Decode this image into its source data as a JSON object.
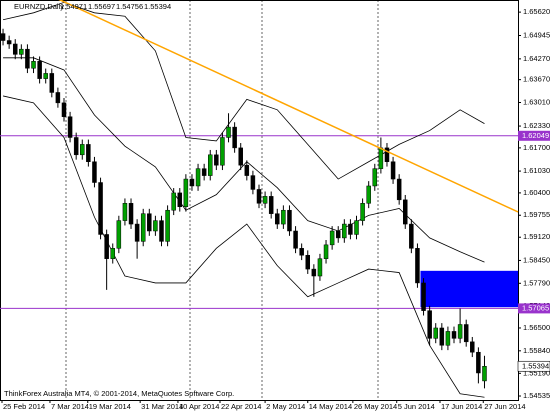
{
  "chart_data": {
    "type": "candlestick",
    "symbol": "EURNZD,Daily",
    "footer": "ThinkForex Australia MT4, © 2001-2014, MetaQuotes Software Corp.",
    "xlim": [
      -0.5,
      84.5
    ],
    "ylim": [
      1.5442,
      1.6597
    ],
    "xticks": [
      {
        "value": -0.17,
        "label": "25 Feb 2014"
      },
      {
        "value": 7.7,
        "label": "7 Mar 2014"
      },
      {
        "value": 13.9,
        "label": "19 Mar 2014"
      },
      {
        "value": 22.5,
        "label": "31 Mar 2014"
      },
      {
        "value": 28.7,
        "label": "10 Apr 2014"
      },
      {
        "value": 35.6,
        "label": "22 Apr 2014"
      },
      {
        "value": 43.0,
        "label": "2 May 2014"
      },
      {
        "value": 50.0,
        "label": "14 May 2014"
      },
      {
        "value": 57.4,
        "label": "26 May 2014"
      },
      {
        "value": 64.6,
        "label": "5 Jun 2014"
      },
      {
        "value": 71.7,
        "label": "17 Jun 2014"
      },
      {
        "value": 78.8,
        "label": "27 Jun 2014"
      }
    ],
    "yticks": [
      {
        "value": 1.6562,
        "label": "1.65620"
      },
      1.64945,
      {
        "value": 1.6427,
        "label": "1.64270"
      },
      {
        "value": 1.6367,
        "label": "1.63670"
      },
      {
        "value": 1.6301,
        "label": "1.63010"
      },
      {
        "value": 1.6233,
        "label": "1.62330"
      },
      {
        "value": 1.617,
        "label": "1.61700"
      },
      {
        "value": 1.6103,
        "label": "1.61030"
      },
      {
        "value": 1.604,
        "label": "1.60400"
      },
      1.59755,
      {
        "value": 1.5912,
        "label": "1.59120"
      },
      {
        "value": 1.5845,
        "label": "1.58450"
      },
      {
        "value": 1.5779,
        "label": "1.57790"
      },
      {
        "value": 1.5714,
        "label": "1.57140"
      },
      {
        "value": 1.565,
        "label": "1.56500"
      },
      {
        "value": 1.5584,
        "label": "1.55840"
      },
      {
        "value": 1.5519,
        "label": "1.55190"
      },
      1.54535
    ],
    "up_color": "#00a000",
    "down_color": "#000000",
    "open": [
      1.65,
      1.648,
      1.647,
      1.644,
      1.6455,
      1.64,
      1.642,
      1.637,
      1.6385,
      1.633,
      1.63,
      1.626,
      1.62,
      1.615,
      1.618,
      1.613,
      1.607,
      1.592,
      1.585,
      1.588,
      1.596,
      1.601,
      1.595,
      1.59,
      1.598,
      1.593,
      1.596,
      1.59,
      1.599,
      1.604,
      1.6,
      1.608,
      1.606,
      1.611,
      1.609,
      1.615,
      1.612,
      1.62,
      1.623,
      1.617,
      1.612,
      1.609,
      1.605,
      1.601,
      1.603,
      1.598,
      1.595,
      1.599,
      1.593,
      1.588,
      1.586,
      1.582,
      1.58,
      1.585,
      1.589,
      1.593,
      1.591,
      1.595,
      1.592,
      1.596,
      1.601,
      1.606,
      1.611,
      1.617,
      1.613,
      1.608,
      1.602,
      1.595,
      1.588,
      1.578,
      1.57,
      1.562,
      1.565,
      1.56,
      1.564,
      1.562,
      1.566,
      1.561,
      1.558,
      1.54971
    ],
    "high": [
      1.6514,
      1.6494,
      1.6484,
      1.6469,
      1.6469,
      1.6434,
      1.6434,
      1.6399,
      1.6399,
      1.6344,
      1.6314,
      1.6274,
      1.6214,
      1.6194,
      1.6194,
      1.6144,
      1.6084,
      1.5934,
      1.5894,
      1.5974,
      1.6024,
      1.6024,
      1.5964,
      1.5994,
      1.5994,
      1.5974,
      1.5974,
      1.6004,
      1.6054,
      1.6054,
      1.6094,
      1.6094,
      1.6124,
      1.6124,
      1.6164,
      1.6164,
      1.6214,
      1.627,
      1.6244,
      1.6184,
      1.6134,
      1.6104,
      1.6064,
      1.6044,
      1.6044,
      1.5994,
      1.6004,
      1.6004,
      1.5944,
      1.5894,
      1.5874,
      1.5834,
      1.5864,
      1.5904,
      1.5944,
      1.5944,
      1.5964,
      1.5964,
      1.5974,
      1.6024,
      1.6074,
      1.6124,
      1.62,
      1.6184,
      1.6144,
      1.6094,
      1.6034,
      1.5964,
      1.5894,
      1.5794,
      1.5714,
      1.5664,
      1.5664,
      1.5654,
      1.5654,
      1.5706,
      1.5674,
      1.5624,
      1.5594,
      1.55697
    ],
    "low": [
      1.6466,
      1.6456,
      1.6426,
      1.6426,
      1.6386,
      1.6386,
      1.6356,
      1.6356,
      1.6316,
      1.6286,
      1.6246,
      1.6186,
      1.6136,
      1.6136,
      1.6116,
      1.6056,
      1.5906,
      1.576,
      1.5836,
      1.5866,
      1.5946,
      1.5936,
      1.585,
      1.5886,
      1.5916,
      1.5916,
      1.5886,
      1.5886,
      1.5976,
      1.5986,
      1.5986,
      1.6046,
      1.6046,
      1.6076,
      1.6076,
      1.6106,
      1.6106,
      1.6186,
      1.6156,
      1.6106,
      1.6076,
      1.6036,
      1.5996,
      1.5996,
      1.5966,
      1.5936,
      1.5936,
      1.5916,
      1.5866,
      1.5846,
      1.5806,
      1.574,
      1.5786,
      1.5836,
      1.5876,
      1.5896,
      1.5896,
      1.5906,
      1.5906,
      1.5946,
      1.5996,
      1.6046,
      1.6096,
      1.6116,
      1.6066,
      1.6006,
      1.5936,
      1.5866,
      1.5766,
      1.5686,
      1.56,
      1.5606,
      1.5586,
      1.5586,
      1.5606,
      1.5606,
      1.5596,
      1.5566,
      1.549,
      1.54756
    ],
    "close": [
      1.648,
      1.647,
      1.644,
      1.6455,
      1.64,
      1.642,
      1.637,
      1.6385,
      1.633,
      1.63,
      1.626,
      1.62,
      1.615,
      1.618,
      1.613,
      1.607,
      1.592,
      1.585,
      1.588,
      1.596,
      1.601,
      1.595,
      1.59,
      1.598,
      1.593,
      1.596,
      1.59,
      1.599,
      1.604,
      1.6,
      1.608,
      1.606,
      1.611,
      1.609,
      1.615,
      1.612,
      1.62,
      1.623,
      1.617,
      1.612,
      1.609,
      1.605,
      1.601,
      1.603,
      1.598,
      1.595,
      1.599,
      1.593,
      1.588,
      1.586,
      1.582,
      1.58,
      1.585,
      1.589,
      1.593,
      1.591,
      1.595,
      1.592,
      1.596,
      1.601,
      1.606,
      1.611,
      1.617,
      1.613,
      1.608,
      1.602,
      1.595,
      1.588,
      1.578,
      1.57,
      1.562,
      1.565,
      1.56,
      1.564,
      1.562,
      1.566,
      1.561,
      1.558,
      1.552,
      1.55394
    ],
    "indicators": [
      {
        "color": "#000000",
        "x": [
          0,
          5,
          10,
          15,
          20,
          25,
          30,
          35,
          40,
          45,
          50,
          55,
          60,
          65,
          70,
          75,
          79
        ],
        "values": [
          1.654,
          1.656,
          1.659,
          1.656,
          1.655,
          1.645,
          1.62,
          1.619,
          1.631,
          1.628,
          1.618,
          1.608,
          1.613,
          1.618,
          1.622,
          1.628,
          1.624
        ]
      },
      {
        "color": "#000000",
        "x": [
          0,
          5,
          10,
          15,
          20,
          25,
          30,
          35,
          40,
          45,
          50,
          55,
          60,
          65,
          70,
          75,
          79
        ],
        "values": [
          1.643,
          1.643,
          1.6395,
          1.6265,
          1.6175,
          1.6115,
          1.599,
          1.6035,
          1.613,
          1.6055,
          1.596,
          1.593,
          1.5975,
          1.5995,
          1.591,
          1.587,
          1.584
        ]
      },
      {
        "color": "#000000",
        "x": [
          0,
          5,
          10,
          15,
          20,
          25,
          30,
          35,
          40,
          45,
          50,
          55,
          60,
          65,
          70,
          75,
          79
        ],
        "values": [
          1.632,
          1.63,
          1.62,
          1.597,
          1.58,
          1.578,
          1.578,
          1.588,
          1.595,
          1.583,
          1.574,
          1.578,
          1.582,
          1.581,
          1.56,
          1.546,
          1.545
        ]
      }
    ],
    "trend_line": {
      "color": "#ffa500",
      "x": [
        9,
        84.5
      ],
      "values": [
        1.66,
        1.5985
      ]
    },
    "levels": [
      1.62049,
      1.57065
    ],
    "level_color": "#9933cc",
    "zone": {
      "color": "#0000ff",
      "x": [
        68.5,
        84.5
      ],
      "values": [
        1.571,
        1.5815
      ]
    }
  }
}
